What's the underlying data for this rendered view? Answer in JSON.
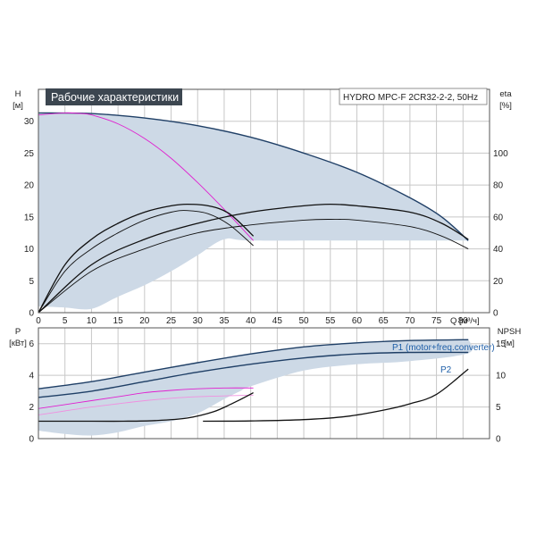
{
  "title": "Рабочие характеристики",
  "model": "HYDRO MPC-F 2CR32-2-2, 50Hz",
  "colors": {
    "envelope_fill": "#cdd9e6",
    "navy": "#1f3f66",
    "magenta": "#e020d0",
    "pink": "#f090e0",
    "black": "#111111",
    "title_bg": "#3c4650"
  },
  "chart_data": [
    {
      "type": "line",
      "name": "head",
      "xlabel": "Q [м³/ч]",
      "x_ticks": [
        0,
        5,
        10,
        15,
        20,
        25,
        30,
        35,
        40,
        45,
        50,
        55,
        60,
        65,
        70,
        75,
        80
      ],
      "xlim": [
        0,
        85
      ],
      "ylabel_left": "H",
      "ylabel_left_unit": "[м]",
      "y_ticks_left": [
        0,
        5,
        10,
        15,
        20,
        25,
        30
      ],
      "ylim_left": [
        0,
        35
      ],
      "ylabel_right": "eta",
      "ylabel_right_unit": "[%]",
      "y_ticks_right": [
        0,
        20,
        40,
        60,
        80,
        100
      ],
      "ylim_right": [
        0,
        140
      ],
      "grid": true,
      "envelope": {
        "upper": [
          [
            0,
            31.3
          ],
          [
            10,
            31.2
          ],
          [
            20,
            30.5
          ],
          [
            30,
            29.3
          ],
          [
            40,
            27.5
          ],
          [
            50,
            25.0
          ],
          [
            60,
            22.0
          ],
          [
            70,
            18.0
          ],
          [
            76,
            15.0
          ],
          [
            81,
            11.3
          ]
        ],
        "lower": [
          [
            81,
            11.3
          ],
          [
            60,
            11.3
          ],
          [
            40,
            11.3
          ],
          [
            35,
            11.5
          ],
          [
            30,
            9.0
          ],
          [
            25,
            6.5
          ],
          [
            20,
            4.3
          ],
          [
            15,
            2.5
          ],
          [
            10,
            0.6
          ],
          [
            5,
            0.8
          ],
          [
            0,
            1.0
          ]
        ]
      },
      "series": [
        {
          "role": "h_two_pumps_max",
          "color": "navy",
          "points": [
            [
              0,
              31.3
            ],
            [
              10,
              31.2
            ],
            [
              20,
              30.5
            ],
            [
              30,
              29.3
            ],
            [
              40,
              27.5
            ],
            [
              50,
              25.0
            ],
            [
              60,
              22.0
            ],
            [
              70,
              18.0
            ],
            [
              76,
              15.0
            ],
            [
              81,
              11.3
            ]
          ]
        },
        {
          "role": "h_one_pump_max",
          "color": "magenta",
          "points": [
            [
              0,
              31.0
            ],
            [
              5,
              31.3
            ],
            [
              8,
              31.2
            ],
            [
              10,
              31.0
            ],
            [
              15,
              29.6
            ],
            [
              20,
              27.3
            ],
            [
              25,
              24.2
            ],
            [
              30,
              20.4
            ],
            [
              35,
              16.2
            ],
            [
              40.5,
              11.3
            ]
          ]
        },
        {
          "role": "eta_one_pump_a",
          "color": "black",
          "points": [
            [
              0,
              0
            ],
            [
              5,
              26
            ],
            [
              10,
              40
            ],
            [
              15,
              50
            ],
            [
              20,
              58
            ],
            [
              25,
              63
            ],
            [
              28,
              64
            ],
            [
              32,
              62
            ],
            [
              36,
              55
            ],
            [
              40.5,
              42
            ]
          ]
        },
        {
          "role": "eta_one_pump_b",
          "color": "black",
          "points": [
            [
              0,
              0
            ],
            [
              5,
              30
            ],
            [
              10,
              46
            ],
            [
              15,
              56
            ],
            [
              20,
              63
            ],
            [
              25,
              67
            ],
            [
              28,
              68
            ],
            [
              32,
              67
            ],
            [
              36,
              62
            ],
            [
              40.5,
              48
            ]
          ]
        },
        {
          "role": "eta_two_pumps_a",
          "color": "black",
          "points": [
            [
              0,
              0
            ],
            [
              10,
              26
            ],
            [
              20,
              40
            ],
            [
              30,
              50
            ],
            [
              40,
              55
            ],
            [
              50,
              58
            ],
            [
              55,
              58.5
            ],
            [
              60,
              58
            ],
            [
              70,
              54
            ],
            [
              76,
              48
            ],
            [
              81,
              40
            ]
          ]
        },
        {
          "role": "eta_two_pumps_b",
          "color": "black",
          "points": [
            [
              0,
              0
            ],
            [
              10,
              30
            ],
            [
              20,
              46
            ],
            [
              30,
              56
            ],
            [
              40,
              63
            ],
            [
              50,
              67
            ],
            [
              55,
              68
            ],
            [
              60,
              67
            ],
            [
              70,
              63
            ],
            [
              76,
              56
            ],
            [
              81,
              46
            ]
          ]
        }
      ]
    },
    {
      "type": "line",
      "name": "power",
      "xlim": [
        0,
        85
      ],
      "ylabel_left": "P",
      "ylabel_left_unit": "[кВт]",
      "y_ticks_left": [
        0,
        2,
        4,
        6
      ],
      "ylim_left": [
        0,
        7
      ],
      "ylabel_right": "NPSH",
      "ylabel_right_unit": "[м]",
      "y_ticks_right": [
        0,
        5,
        10,
        15
      ],
      "ylim_right": [
        0,
        17.5
      ],
      "grid": true,
      "legend": [
        "P1 (motor+freq.converter)",
        "P2"
      ],
      "envelope": {
        "upper": [
          [
            0,
            3.2
          ],
          [
            10,
            3.6
          ],
          [
            20,
            4.2
          ],
          [
            30,
            4.8
          ],
          [
            40,
            5.4
          ],
          [
            50,
            5.8
          ],
          [
            60,
            6.1
          ],
          [
            70,
            6.2
          ],
          [
            81,
            6.3
          ]
        ],
        "lower": [
          [
            81,
            6.3
          ],
          [
            81,
            5.4
          ],
          [
            70,
            4.9
          ],
          [
            60,
            4.7
          ],
          [
            50,
            4.3
          ],
          [
            40,
            3.3
          ],
          [
            38,
            3.0
          ],
          [
            35,
            2.5
          ],
          [
            30,
            1.6
          ],
          [
            25,
            1.1
          ],
          [
            20,
            0.8
          ],
          [
            15,
            0.4
          ],
          [
            10,
            0.2
          ],
          [
            5,
            0.3
          ],
          [
            0,
            0.5
          ]
        ]
      },
      "series": [
        {
          "role": "p1_two_pumps",
          "color": "navy",
          "points": [
            [
              0,
              3.15
            ],
            [
              10,
              3.6
            ],
            [
              20,
              4.2
            ],
            [
              30,
              4.8
            ],
            [
              40,
              5.35
            ],
            [
              50,
              5.8
            ],
            [
              60,
              6.05
            ],
            [
              70,
              6.2
            ],
            [
              81,
              6.25
            ]
          ]
        },
        {
          "role": "p2_two_pumps",
          "color": "navy",
          "points": [
            [
              0,
              2.6
            ],
            [
              10,
              3.0
            ],
            [
              20,
              3.6
            ],
            [
              30,
              4.2
            ],
            [
              40,
              4.7
            ],
            [
              50,
              5.1
            ],
            [
              60,
              5.35
            ],
            [
              70,
              5.45
            ],
            [
              81,
              5.45
            ]
          ]
        },
        {
          "role": "p1_one_pump",
          "color": "magenta",
          "points": [
            [
              0,
              1.9
            ],
            [
              5,
              2.15
            ],
            [
              10,
              2.4
            ],
            [
              15,
              2.65
            ],
            [
              20,
              2.9
            ],
            [
              25,
              3.05
            ],
            [
              30,
              3.15
            ],
            [
              35,
              3.2
            ],
            [
              40.5,
              3.2
            ]
          ]
        },
        {
          "role": "p2_one_pump",
          "color": "pink",
          "points": [
            [
              0,
              1.5
            ],
            [
              5,
              1.75
            ],
            [
              10,
              2.0
            ],
            [
              15,
              2.2
            ],
            [
              20,
              2.4
            ],
            [
              25,
              2.55
            ],
            [
              30,
              2.65
            ],
            [
              35,
              2.7
            ],
            [
              40.5,
              2.75
            ]
          ]
        },
        {
          "role": "npsh_one_pump",
          "color": "black",
          "points": [
            [
              0,
              2.75
            ],
            [
              10,
              2.75
            ],
            [
              16,
              2.75
            ],
            [
              22,
              2.85
            ],
            [
              28,
              3.25
            ],
            [
              33,
              4.25
            ],
            [
              37,
              5.75
            ],
            [
              40.5,
              7.25
            ]
          ]
        },
        {
          "role": "npsh_two_pumps",
          "color": "black",
          "points": [
            [
              31,
              2.75
            ],
            [
              40,
              2.8
            ],
            [
              50,
              3.0
            ],
            [
              58,
              3.5
            ],
            [
              65,
              4.5
            ],
            [
              70,
              5.5
            ],
            [
              75,
              7.0
            ],
            [
              81,
              11.0
            ]
          ]
        }
      ]
    }
  ]
}
